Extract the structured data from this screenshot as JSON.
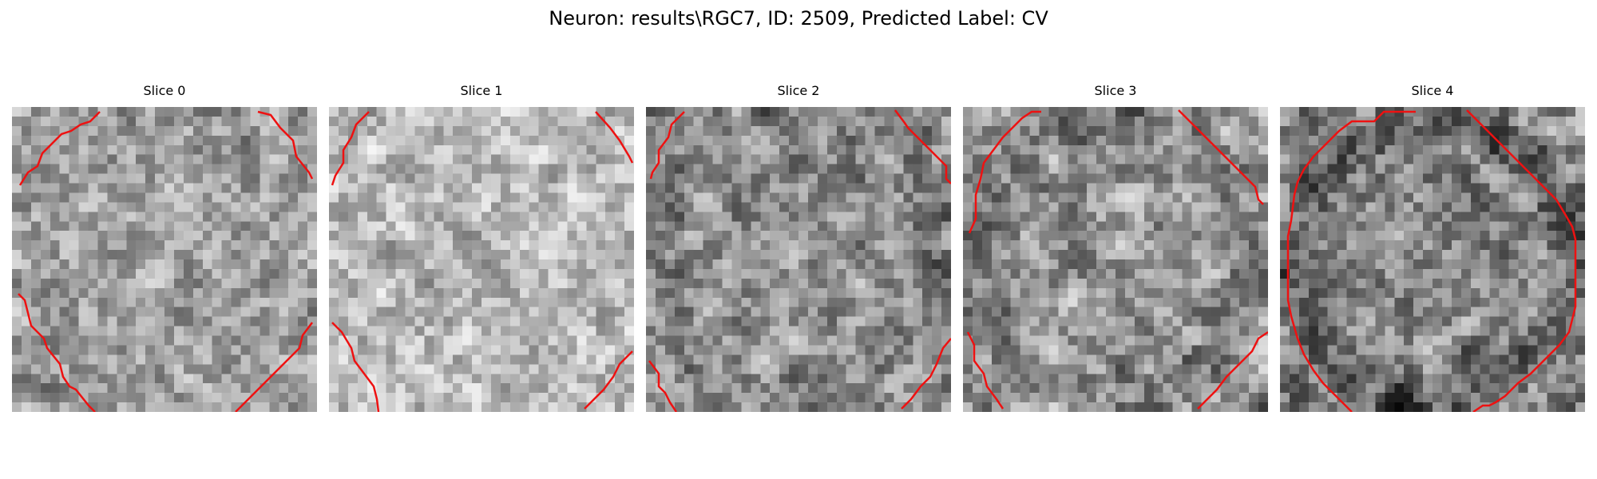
{
  "figure": {
    "title": "Neuron: results\\RGC7, ID: 2509, Predicted Label: CV"
  },
  "style": {
    "contour_color": "#ee1111"
  },
  "slices": [
    {
      "title": "Slice 0",
      "brightness": 0.62,
      "contrast": 0.22
    },
    {
      "title": "Slice 1",
      "brightness": 0.72,
      "contrast": 0.18
    },
    {
      "title": "Slice 2",
      "brightness": 0.55,
      "contrast": 0.25
    },
    {
      "title": "Slice 3",
      "brightness": 0.58,
      "contrast": 0.26
    },
    {
      "title": "Slice 4",
      "brightness": 0.52,
      "contrast": 0.28
    }
  ]
}
